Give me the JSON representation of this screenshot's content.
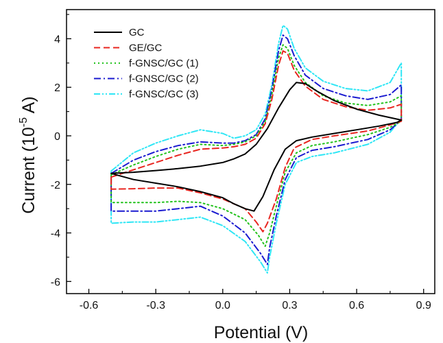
{
  "chart_data": {
    "type": "line",
    "xlabel": "Potential (V)",
    "ylabel": {
      "prefix": "Current (10",
      "exponent": "-5",
      "suffix": " A)"
    },
    "xlim": [
      -0.7,
      0.95
    ],
    "ylim": [
      -6.5,
      5.2
    ],
    "xticks": [
      -0.6,
      -0.3,
      0.0,
      0.3,
      0.6,
      0.9
    ],
    "xtick_labels": [
      "-0.6",
      "-0.3",
      "0.0",
      "0.3",
      "0.6",
      "0.9"
    ],
    "yticks": [
      -6,
      -4,
      -2,
      0,
      2,
      4
    ],
    "ytick_labels": [
      "-6",
      "-4",
      "-2",
      "0",
      "2",
      "4"
    ],
    "legend_position": "top-left",
    "series": [
      {
        "name": "GC",
        "color": "#000000",
        "dash": "solid",
        "points": [
          [
            -0.5,
            -1.55
          ],
          [
            -0.4,
            -1.5
          ],
          [
            -0.3,
            -1.43
          ],
          [
            -0.2,
            -1.35
          ],
          [
            -0.1,
            -1.25
          ],
          [
            0.0,
            -1.1
          ],
          [
            0.05,
            -0.95
          ],
          [
            0.1,
            -0.75
          ],
          [
            0.15,
            -0.35
          ],
          [
            0.2,
            0.3
          ],
          [
            0.25,
            1.15
          ],
          [
            0.3,
            1.9
          ],
          [
            0.33,
            2.2
          ],
          [
            0.37,
            2.15
          ],
          [
            0.42,
            1.85
          ],
          [
            0.5,
            1.45
          ],
          [
            0.6,
            1.1
          ],
          [
            0.7,
            0.85
          ],
          [
            0.8,
            0.65
          ],
          [
            0.78,
            0.55
          ],
          [
            0.7,
            0.4
          ],
          [
            0.6,
            0.25
          ],
          [
            0.5,
            0.1
          ],
          [
            0.4,
            -0.05
          ],
          [
            0.33,
            -0.2
          ],
          [
            0.28,
            -0.55
          ],
          [
            0.23,
            -1.4
          ],
          [
            0.18,
            -2.5
          ],
          [
            0.14,
            -3.1
          ],
          [
            0.1,
            -3.0
          ],
          [
            0.05,
            -2.8
          ],
          [
            0.0,
            -2.55
          ],
          [
            -0.1,
            -2.3
          ],
          [
            -0.2,
            -2.1
          ],
          [
            -0.3,
            -1.95
          ],
          [
            -0.4,
            -1.8
          ],
          [
            -0.5,
            -1.55
          ]
        ]
      },
      {
        "name": "GE/GC",
        "color": "#e8251f",
        "dash": "dashed",
        "points": [
          [
            -0.5,
            -1.7
          ],
          [
            -0.4,
            -1.4
          ],
          [
            -0.3,
            -1.1
          ],
          [
            -0.2,
            -0.8
          ],
          [
            -0.1,
            -0.55
          ],
          [
            0.0,
            -0.5
          ],
          [
            0.05,
            -0.45
          ],
          [
            0.1,
            -0.35
          ],
          [
            0.15,
            -0.1
          ],
          [
            0.19,
            0.5
          ],
          [
            0.22,
            1.5
          ],
          [
            0.25,
            2.9
          ],
          [
            0.27,
            3.5
          ],
          [
            0.29,
            3.4
          ],
          [
            0.32,
            2.7
          ],
          [
            0.37,
            2.05
          ],
          [
            0.45,
            1.5
          ],
          [
            0.55,
            1.2
          ],
          [
            0.65,
            1.05
          ],
          [
            0.75,
            1.15
          ],
          [
            0.8,
            1.3
          ],
          [
            0.8,
            0.6
          ],
          [
            0.75,
            0.45
          ],
          [
            0.65,
            0.2
          ],
          [
            0.5,
            0.0
          ],
          [
            0.4,
            -0.15
          ],
          [
            0.32,
            -0.5
          ],
          [
            0.28,
            -1.3
          ],
          [
            0.24,
            -2.6
          ],
          [
            0.2,
            -3.6
          ],
          [
            0.18,
            -3.95
          ],
          [
            0.15,
            -3.55
          ],
          [
            0.1,
            -3.0
          ],
          [
            0.0,
            -2.6
          ],
          [
            -0.1,
            -2.35
          ],
          [
            -0.2,
            -2.15
          ],
          [
            -0.3,
            -2.15
          ],
          [
            -0.4,
            -2.18
          ],
          [
            -0.5,
            -2.2
          ],
          [
            -0.5,
            -1.7
          ]
        ]
      },
      {
        "name": "f-GNSC/GC (1)",
        "color": "#22c21c",
        "dash": "dotted",
        "points": [
          [
            -0.5,
            -1.6
          ],
          [
            -0.4,
            -1.2
          ],
          [
            -0.3,
            -0.85
          ],
          [
            -0.2,
            -0.55
          ],
          [
            -0.1,
            -0.35
          ],
          [
            0.0,
            -0.4
          ],
          [
            0.05,
            -0.35
          ],
          [
            0.1,
            -0.25
          ],
          [
            0.15,
            0.0
          ],
          [
            0.19,
            0.6
          ],
          [
            0.22,
            1.7
          ],
          [
            0.25,
            3.2
          ],
          [
            0.27,
            3.75
          ],
          [
            0.29,
            3.6
          ],
          [
            0.32,
            2.9
          ],
          [
            0.37,
            2.2
          ],
          [
            0.45,
            1.65
          ],
          [
            0.55,
            1.35
          ],
          [
            0.65,
            1.25
          ],
          [
            0.75,
            1.4
          ],
          [
            0.8,
            1.65
          ],
          [
            0.8,
            0.6
          ],
          [
            0.75,
            0.35
          ],
          [
            0.65,
            0.05
          ],
          [
            0.5,
            -0.25
          ],
          [
            0.4,
            -0.4
          ],
          [
            0.33,
            -0.7
          ],
          [
            0.28,
            -1.5
          ],
          [
            0.24,
            -2.9
          ],
          [
            0.21,
            -4.0
          ],
          [
            0.19,
            -4.55
          ],
          [
            0.16,
            -4.1
          ],
          [
            0.1,
            -3.45
          ],
          [
            0.0,
            -3.0
          ],
          [
            -0.1,
            -2.75
          ],
          [
            -0.2,
            -2.7
          ],
          [
            -0.3,
            -2.75
          ],
          [
            -0.4,
            -2.75
          ],
          [
            -0.5,
            -2.75
          ],
          [
            -0.5,
            -1.6
          ]
        ]
      },
      {
        "name": "f-GNSC/GC (2)",
        "color": "#1a1ad0",
        "dash": "dashdot",
        "points": [
          [
            -0.5,
            -1.55
          ],
          [
            -0.4,
            -1.0
          ],
          [
            -0.3,
            -0.65
          ],
          [
            -0.2,
            -0.4
          ],
          [
            -0.1,
            -0.25
          ],
          [
            0.0,
            -0.3
          ],
          [
            0.05,
            -0.3
          ],
          [
            0.1,
            -0.2
          ],
          [
            0.15,
            0.05
          ],
          [
            0.19,
            0.7
          ],
          [
            0.22,
            1.9
          ],
          [
            0.25,
            3.5
          ],
          [
            0.27,
            4.15
          ],
          [
            0.29,
            4.0
          ],
          [
            0.32,
            3.3
          ],
          [
            0.37,
            2.5
          ],
          [
            0.45,
            1.95
          ],
          [
            0.55,
            1.65
          ],
          [
            0.65,
            1.5
          ],
          [
            0.75,
            1.7
          ],
          [
            0.8,
            2.1
          ],
          [
            0.8,
            0.65
          ],
          [
            0.75,
            0.25
          ],
          [
            0.65,
            -0.15
          ],
          [
            0.5,
            -0.45
          ],
          [
            0.4,
            -0.6
          ],
          [
            0.33,
            -0.9
          ],
          [
            0.28,
            -1.8
          ],
          [
            0.24,
            -3.3
          ],
          [
            0.21,
            -4.6
          ],
          [
            0.2,
            -5.3
          ],
          [
            0.17,
            -4.85
          ],
          [
            0.1,
            -4.0
          ],
          [
            0.0,
            -3.3
          ],
          [
            -0.1,
            -2.9
          ],
          [
            -0.2,
            -3.0
          ],
          [
            -0.3,
            -3.1
          ],
          [
            -0.4,
            -3.1
          ],
          [
            -0.5,
            -3.1
          ],
          [
            -0.5,
            -1.55
          ]
        ]
      },
      {
        "name": "f-GNSC/GC (3)",
        "color": "#2ee6f5",
        "dash": "dashdotdot",
        "points": [
          [
            -0.5,
            -1.45
          ],
          [
            -0.4,
            -0.7
          ],
          [
            -0.3,
            -0.3
          ],
          [
            -0.2,
            0.0
          ],
          [
            -0.1,
            0.25
          ],
          [
            0.0,
            0.1
          ],
          [
            0.05,
            -0.1
          ],
          [
            0.1,
            0.0
          ],
          [
            0.15,
            0.25
          ],
          [
            0.19,
            0.9
          ],
          [
            0.22,
            2.1
          ],
          [
            0.25,
            3.8
          ],
          [
            0.27,
            4.55
          ],
          [
            0.29,
            4.4
          ],
          [
            0.32,
            3.6
          ],
          [
            0.37,
            2.8
          ],
          [
            0.45,
            2.25
          ],
          [
            0.55,
            1.95
          ],
          [
            0.65,
            1.85
          ],
          [
            0.75,
            2.2
          ],
          [
            0.8,
            3.0
          ],
          [
            0.8,
            0.7
          ],
          [
            0.75,
            0.15
          ],
          [
            0.65,
            -0.35
          ],
          [
            0.5,
            -0.7
          ],
          [
            0.4,
            -0.85
          ],
          [
            0.33,
            -1.1
          ],
          [
            0.28,
            -2.0
          ],
          [
            0.24,
            -3.6
          ],
          [
            0.21,
            -5.0
          ],
          [
            0.2,
            -5.65
          ],
          [
            0.17,
            -5.2
          ],
          [
            0.1,
            -4.35
          ],
          [
            0.0,
            -3.7
          ],
          [
            -0.1,
            -3.35
          ],
          [
            -0.2,
            -3.45
          ],
          [
            -0.3,
            -3.55
          ],
          [
            -0.4,
            -3.55
          ],
          [
            -0.5,
            -3.6
          ],
          [
            -0.5,
            -1.45
          ]
        ]
      }
    ]
  }
}
